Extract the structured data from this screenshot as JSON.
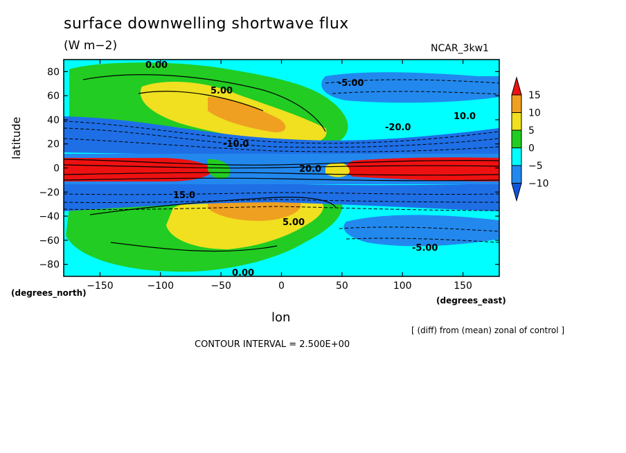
{
  "chart_data": {
    "type": "heatmap",
    "title": "surface downwelling shortwave flux",
    "units": "(W m−2)",
    "model": "NCAR_3kw1",
    "xlabel": "lon",
    "ylabel": "latitude",
    "x_axis_name": "(degrees_east)",
    "y_axis_name": "(degrees_north)",
    "xlim": [
      -180,
      180
    ],
    "ylim": [
      -90,
      90
    ],
    "x_ticks": [
      -150,
      -100,
      -50,
      0,
      50,
      100,
      150
    ],
    "y_ticks": [
      80,
      60,
      40,
      20,
      0,
      -20,
      -40,
      -60,
      -80
    ],
    "colorbar": {
      "levels": [
        15,
        10,
        5,
        0,
        -5,
        -10
      ],
      "colors": [
        "#ee1111",
        "#f0a020",
        "#f0e020",
        "#22cc22",
        "#00ffff",
        "#2288ee",
        "#1155dd"
      ]
    },
    "contour_labels": [
      "0.00",
      "5.00",
      "-5.00",
      "10.0",
      "-10.0",
      "-20.0",
      "20.0",
      "15.0",
      "5.00",
      "0.00",
      "-5.00"
    ],
    "note": "[ (diff) from (mean) zonal of control ]",
    "contour_interval": "CONTOUR INTERVAL = 2.500E+00",
    "grid": false
  }
}
